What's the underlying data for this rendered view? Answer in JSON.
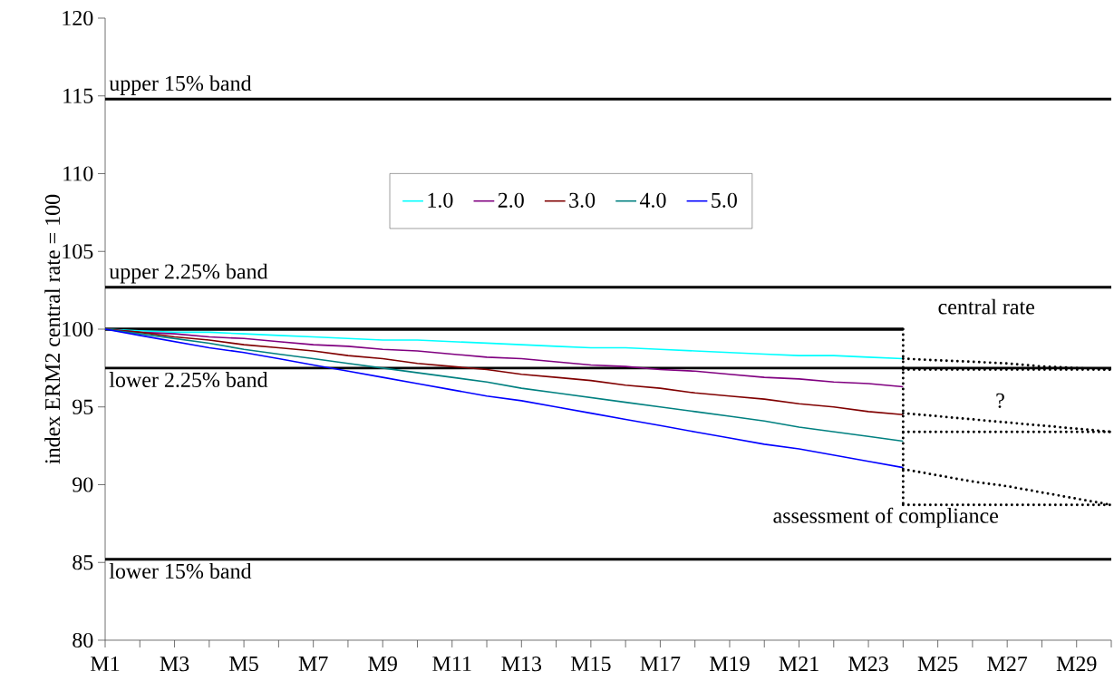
{
  "chart_data": {
    "type": "line",
    "ylabel": "index ERM2 central rate = 100",
    "ylim": [
      80,
      120
    ],
    "yticks": [
      80,
      85,
      90,
      95,
      100,
      105,
      110,
      115,
      120
    ],
    "categories": [
      "M1",
      null,
      "M3",
      null,
      "M5",
      null,
      "M7",
      null,
      "M9",
      null,
      "M11",
      null,
      "M13",
      null,
      "M15",
      null,
      "M17",
      null,
      "M19",
      null,
      "M21",
      null,
      "M23",
      null,
      "M25",
      null,
      "M27",
      null,
      "M29",
      null
    ],
    "series": [
      {
        "color": "#000000",
        "line_style": "solid",
        "values": [
          100,
          100,
          100,
          100,
          100,
          100,
          100,
          100,
          100,
          100,
          100,
          100,
          100,
          100,
          100,
          100,
          100,
          100,
          100,
          100,
          100,
          100,
          100,
          100,
          null,
          null,
          null,
          null,
          null,
          null
        ]
      },
      {
        "name": "1.0",
        "color": "#00ffff",
        "line_style": "solid",
        "values": [
          100,
          99.9,
          99.8,
          99.8,
          99.7,
          99.6,
          99.5,
          99.4,
          99.3,
          99.3,
          99.2,
          99.1,
          99.0,
          98.9,
          98.8,
          98.8,
          98.7,
          98.6,
          98.5,
          98.4,
          98.3,
          98.3,
          98.2,
          98.1,
          null,
          null,
          null,
          null,
          null,
          null
        ]
      },
      {
        "name": "2.0",
        "color": "#800080",
        "line_style": "solid",
        "values": [
          100,
          99.8,
          99.7,
          99.5,
          99.4,
          99.2,
          99.0,
          98.9,
          98.7,
          98.6,
          98.4,
          98.2,
          98.1,
          97.9,
          97.7,
          97.6,
          97.4,
          97.3,
          97.1,
          96.9,
          96.8,
          96.6,
          96.5,
          96.3,
          null,
          null,
          null,
          null,
          null,
          null
        ]
      },
      {
        "name": "3.0",
        "color": "#800000",
        "line_style": "solid",
        "values": [
          100,
          99.8,
          99.5,
          99.3,
          99.0,
          98.8,
          98.6,
          98.3,
          98.1,
          97.8,
          97.6,
          97.4,
          97.1,
          96.9,
          96.7,
          96.4,
          96.2,
          95.9,
          95.7,
          95.5,
          95.2,
          95.0,
          94.7,
          94.5,
          null,
          null,
          null,
          null,
          null,
          null
        ]
      },
      {
        "name": "4.0",
        "color": "#008080",
        "line_style": "solid",
        "values": [
          100,
          99.7,
          99.4,
          99.1,
          98.7,
          98.4,
          98.1,
          97.8,
          97.5,
          97.2,
          96.9,
          96.6,
          96.2,
          95.9,
          95.6,
          95.3,
          95.0,
          94.7,
          94.4,
          94.1,
          93.7,
          93.4,
          93.1,
          92.8,
          null,
          null,
          null,
          null,
          null,
          null
        ]
      },
      {
        "name": "5.0",
        "color": "#0000ff",
        "line_style": "solid",
        "values": [
          100,
          99.6,
          99.2,
          98.8,
          98.5,
          98.1,
          97.7,
          97.3,
          96.9,
          96.5,
          96.1,
          95.7,
          95.4,
          95.0,
          94.6,
          94.2,
          93.8,
          93.4,
          93.0,
          92.6,
          92.3,
          91.9,
          91.5,
          91.1,
          null,
          null,
          null,
          null,
          null,
          null
        ]
      },
      {
        "color": "#000000",
        "line_style": "dotted",
        "values": [
          null,
          null,
          null,
          null,
          null,
          null,
          null,
          null,
          null,
          null,
          null,
          null,
          null,
          null,
          null,
          null,
          null,
          null,
          null,
          null,
          null,
          null,
          null,
          97.4,
          97.4,
          97.4,
          97.4,
          97.4,
          97.4,
          97.4
        ]
      },
      {
        "color": "#000000",
        "line_style": "dotted",
        "values": [
          null,
          null,
          null,
          null,
          null,
          null,
          null,
          null,
          null,
          null,
          null,
          null,
          null,
          null,
          null,
          null,
          null,
          null,
          null,
          null,
          null,
          null,
          null,
          93.4,
          93.4,
          93.4,
          93.4,
          93.4,
          93.4,
          93.4
        ]
      },
      {
        "color": "#000000",
        "line_style": "dotted",
        "values": [
          null,
          null,
          null,
          null,
          null,
          null,
          null,
          null,
          null,
          null,
          null,
          null,
          null,
          null,
          null,
          null,
          null,
          null,
          null,
          null,
          null,
          null,
          null,
          88.7,
          88.7,
          88.7,
          88.7,
          88.7,
          88.7,
          88.7
        ]
      },
      {
        "color": "#000000",
        "line_style": "dotted",
        "values": [
          null,
          null,
          null,
          null,
          null,
          null,
          null,
          null,
          null,
          null,
          null,
          null,
          null,
          null,
          null,
          null,
          null,
          null,
          null,
          null,
          null,
          null,
          null,
          98.1,
          98.0,
          97.9,
          97.8,
          97.6,
          97.5,
          97.4
        ]
      },
      {
        "color": "#000000",
        "line_style": "dotted",
        "values": [
          null,
          null,
          null,
          null,
          null,
          null,
          null,
          null,
          null,
          null,
          null,
          null,
          null,
          null,
          null,
          null,
          null,
          null,
          null,
          null,
          null,
          null,
          null,
          94.6,
          94.4,
          94.2,
          94.0,
          93.8,
          93.6,
          93.4
        ]
      },
      {
        "color": "#000000",
        "line_style": "dotted",
        "values": [
          null,
          null,
          null,
          null,
          null,
          null,
          null,
          null,
          null,
          null,
          null,
          null,
          null,
          null,
          null,
          null,
          null,
          null,
          null,
          null,
          null,
          null,
          null,
          91.0,
          90.6,
          90.2,
          89.9,
          89.5,
          89.1,
          88.7
        ]
      }
    ],
    "ref_lines": [
      {
        "axis": "y",
        "value": 114.8,
        "label": "upper 15% band"
      },
      {
        "axis": "y",
        "value": 102.7,
        "label": "upper 2.25% band"
      },
      {
        "axis": "y",
        "value": 97.5,
        "label": "lower 2.25% band"
      },
      {
        "axis": "y",
        "value": 85.2,
        "label": "lower 15% band"
      }
    ],
    "annotations": [
      "central rate",
      "?",
      {
        "text": "assessment of compliance",
        "x": "M25",
        "y": 88.7
      }
    ],
    "legend": "top"
  }
}
